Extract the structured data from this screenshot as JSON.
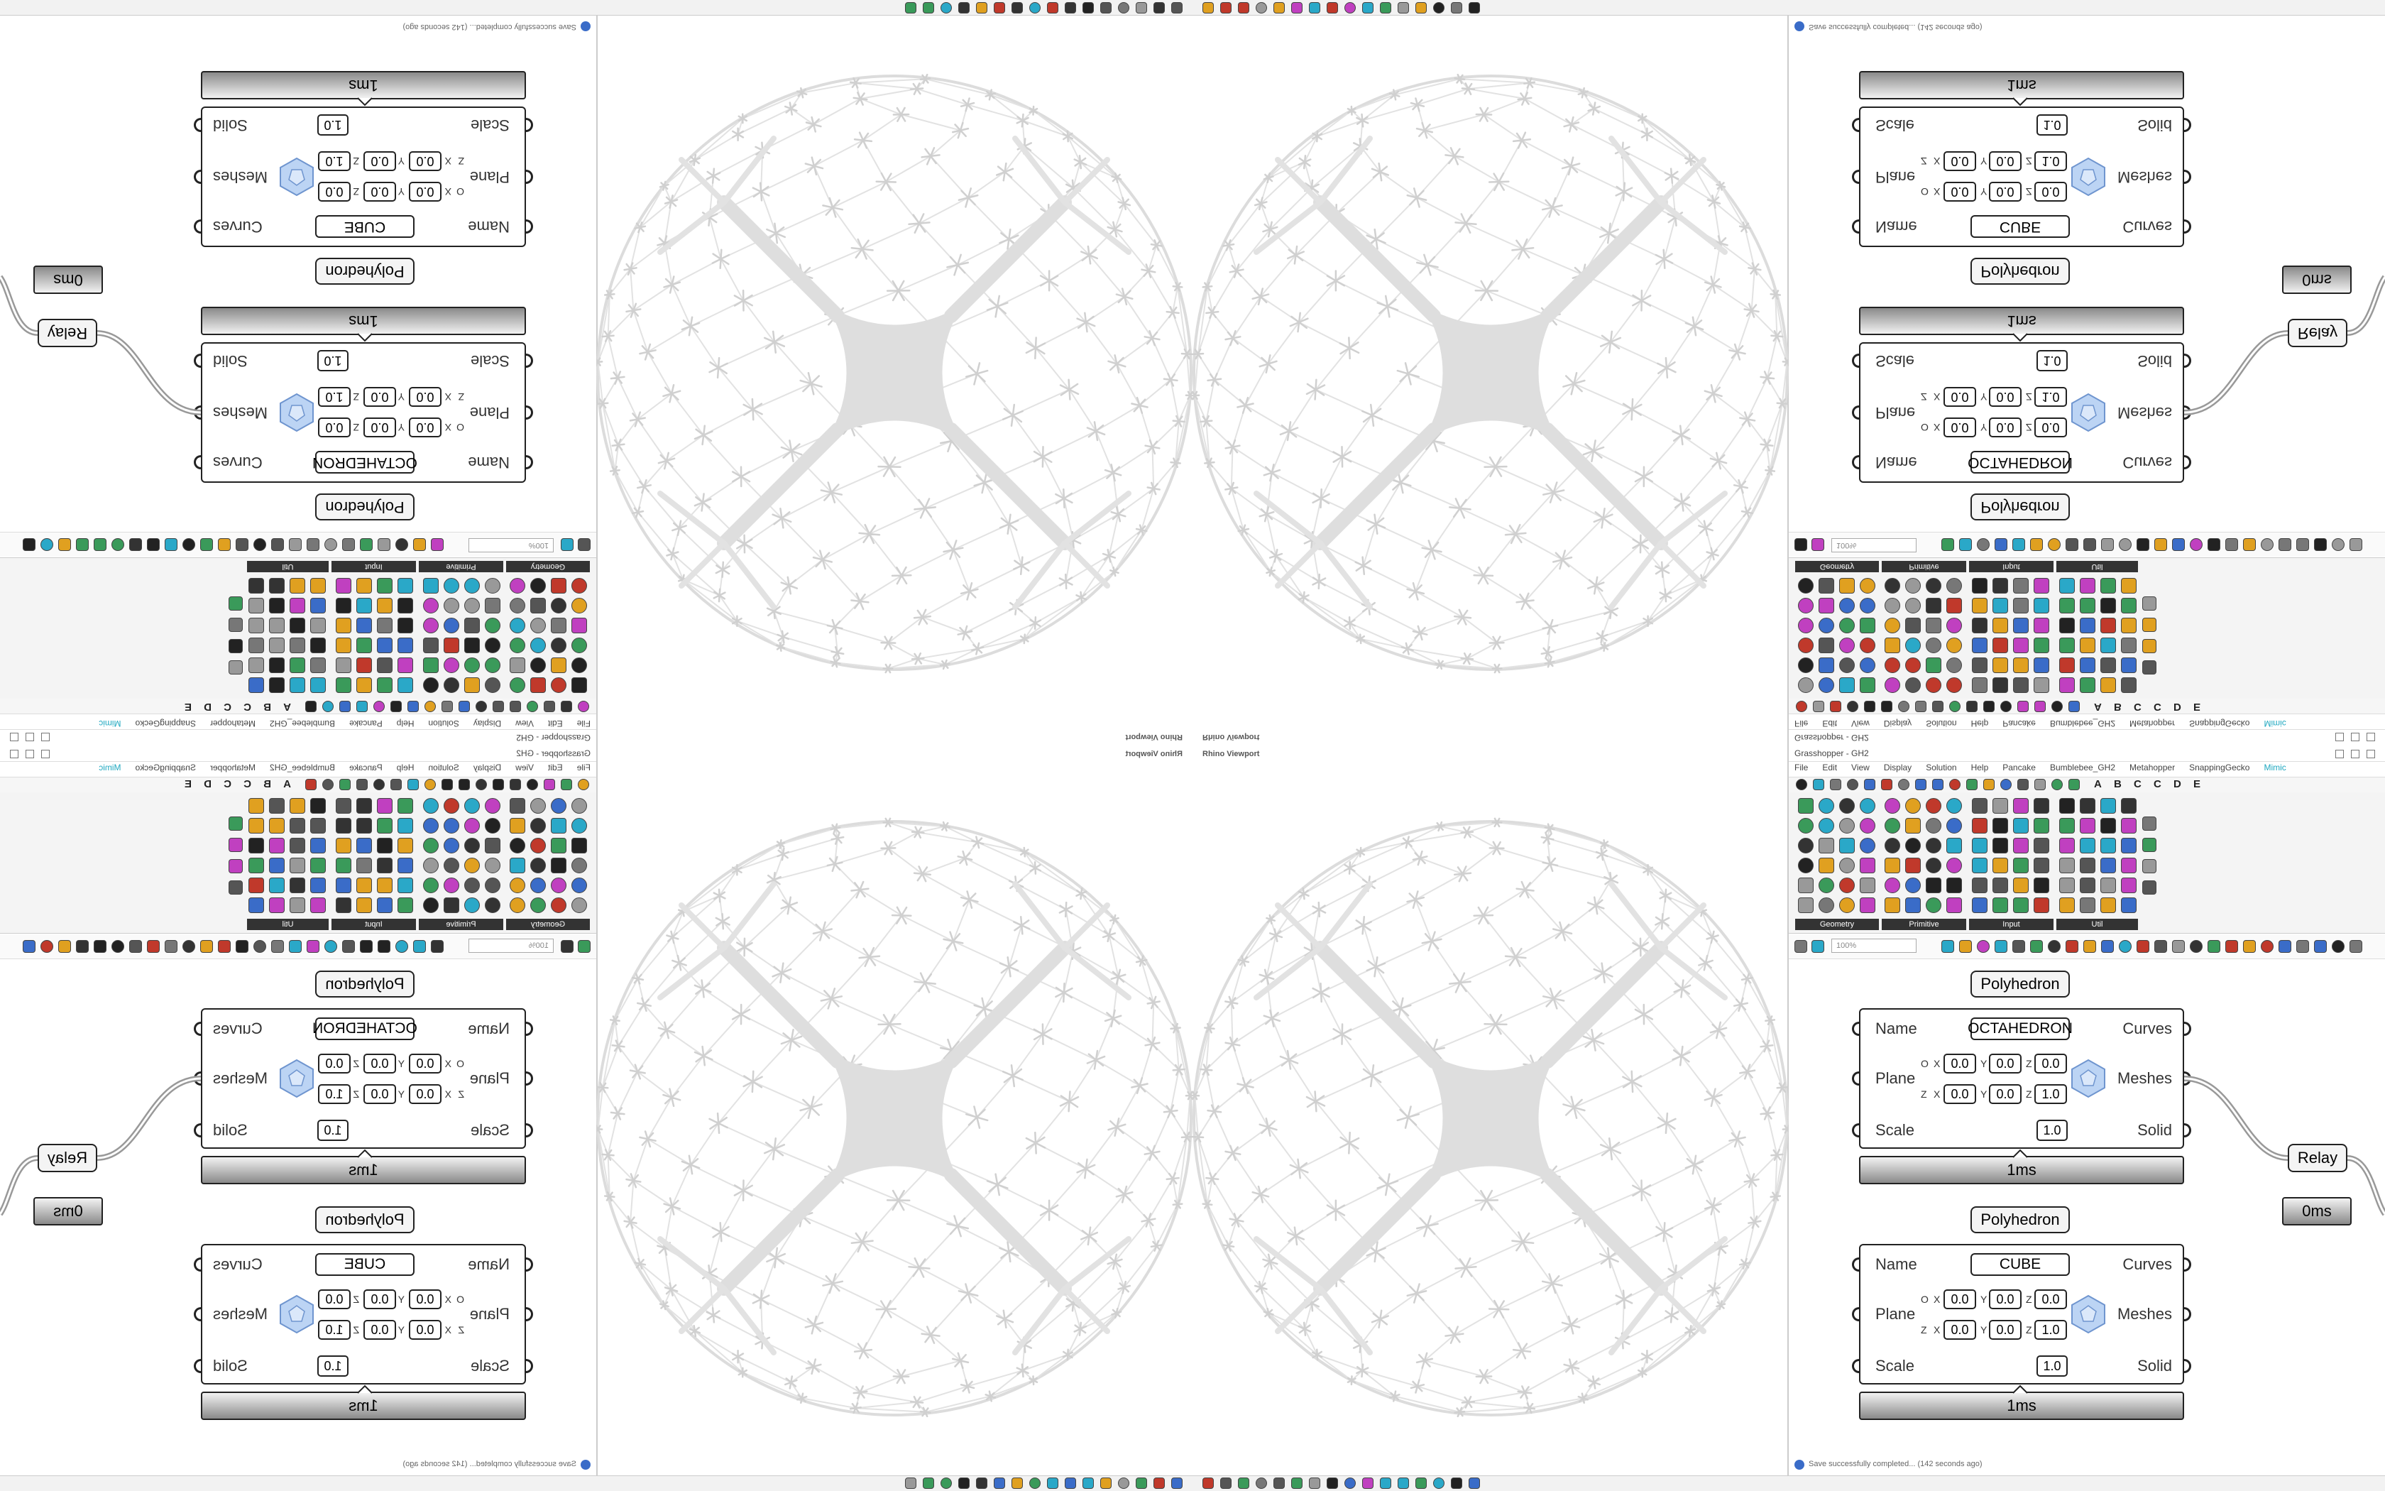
{
  "viewport": {
    "title": "Rhino Viewport"
  },
  "grasshopper": {
    "title": "Grasshopper - GH2",
    "menu": [
      "File",
      "Edit",
      "View",
      "Display",
      "Solution",
      "Help",
      "Pancake",
      "Bumblebee_GH2",
      "Metahopper",
      "SnappingGecko",
      "Mimic"
    ],
    "tab_letters": [
      "A",
      "B",
      "C",
      "C",
      "D",
      "E"
    ],
    "panels": [
      "Geometry",
      "Primitive",
      "Input",
      "Util"
    ],
    "zoom": "100%",
    "status": "Save successfully completed... (142 seconds ago)"
  },
  "components": [
    {
      "title": "Polyhedron",
      "inputs": [
        "Name",
        "Plane",
        "Scale"
      ],
      "outputs": [
        "Curves",
        "Meshes",
        "Solid"
      ],
      "name": "OCTAHEDRON",
      "coord_labels": [
        "X",
        "Y",
        "Z"
      ],
      "plane_rows": [
        {
          "label": "O",
          "values": [
            "0.0",
            "0.0",
            "0.0"
          ]
        },
        {
          "label": "Z",
          "values": [
            "0.0",
            "0.0",
            "1.0"
          ]
        }
      ],
      "scale": "1.0",
      "timer": "1ms"
    },
    {
      "title": "Polyhedron",
      "inputs": [
        "Name",
        "Plane",
        "Scale"
      ],
      "outputs": [
        "Curves",
        "Meshes",
        "Solid"
      ],
      "name": "CUBE",
      "coord_labels": [
        "X",
        "Y",
        "Z"
      ],
      "plane_rows": [
        {
          "label": "O",
          "values": [
            "0.0",
            "0.0",
            "0.0"
          ]
        },
        {
          "label": "Z",
          "values": [
            "0.0",
            "0.0",
            "1.0"
          ]
        }
      ],
      "scale": "1.0",
      "timer": "1ms"
    }
  ],
  "relay": {
    "label": "Relay",
    "timer": "0ms"
  }
}
